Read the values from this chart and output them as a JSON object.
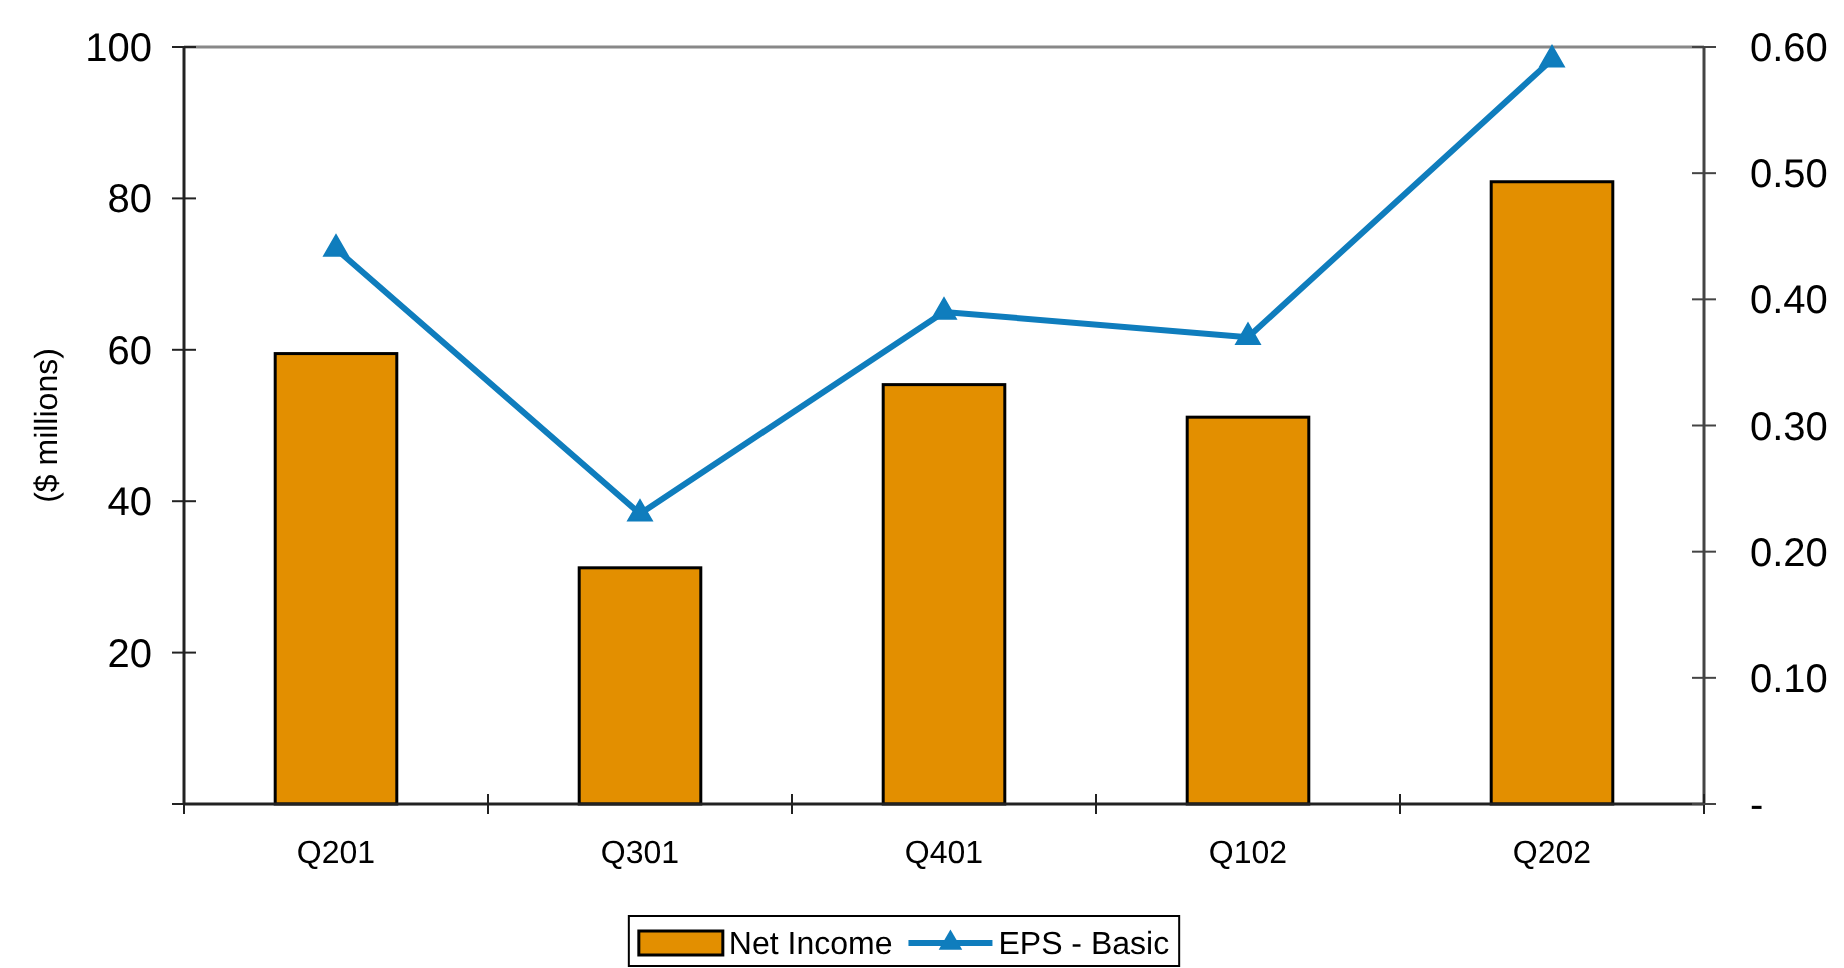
{
  "chart_data": {
    "type": "bar",
    "ylabel": "($ millions)",
    "categories": [
      "Q201",
      "Q301",
      "Q401",
      "Q102",
      "Q202"
    ],
    "series": [
      {
        "name": "Net Income",
        "color": "#e38f00",
        "values": [
          59.5,
          31.2,
          55.4,
          51.1,
          82.2
        ]
      },
      {
        "name": "EPS - Basic",
        "type": "line",
        "axis": "y2",
        "color": "#0f7dbd",
        "marker": "triangle",
        "values": [
          0.44,
          0.23,
          0.39,
          0.37,
          0.59
        ]
      }
    ],
    "ylim": [
      0,
      100
    ],
    "yticks": [
      {
        "value": 0,
        "label": null
      },
      20,
      40,
      60,
      80,
      100
    ],
    "y2lim": [
      0,
      0.6
    ],
    "y2ticks": [
      {
        "value": 0,
        "label": "-"
      },
      {
        "value": 0.1,
        "label": "0.10"
      },
      {
        "value": 0.2,
        "label": "0.20"
      },
      {
        "value": 0.3,
        "label": "0.30"
      },
      {
        "value": 0.4,
        "label": "0.40"
      },
      {
        "value": 0.5,
        "label": "0.50"
      },
      {
        "value": 0.6,
        "label": "0.60"
      }
    ],
    "legend": "bottom"
  }
}
